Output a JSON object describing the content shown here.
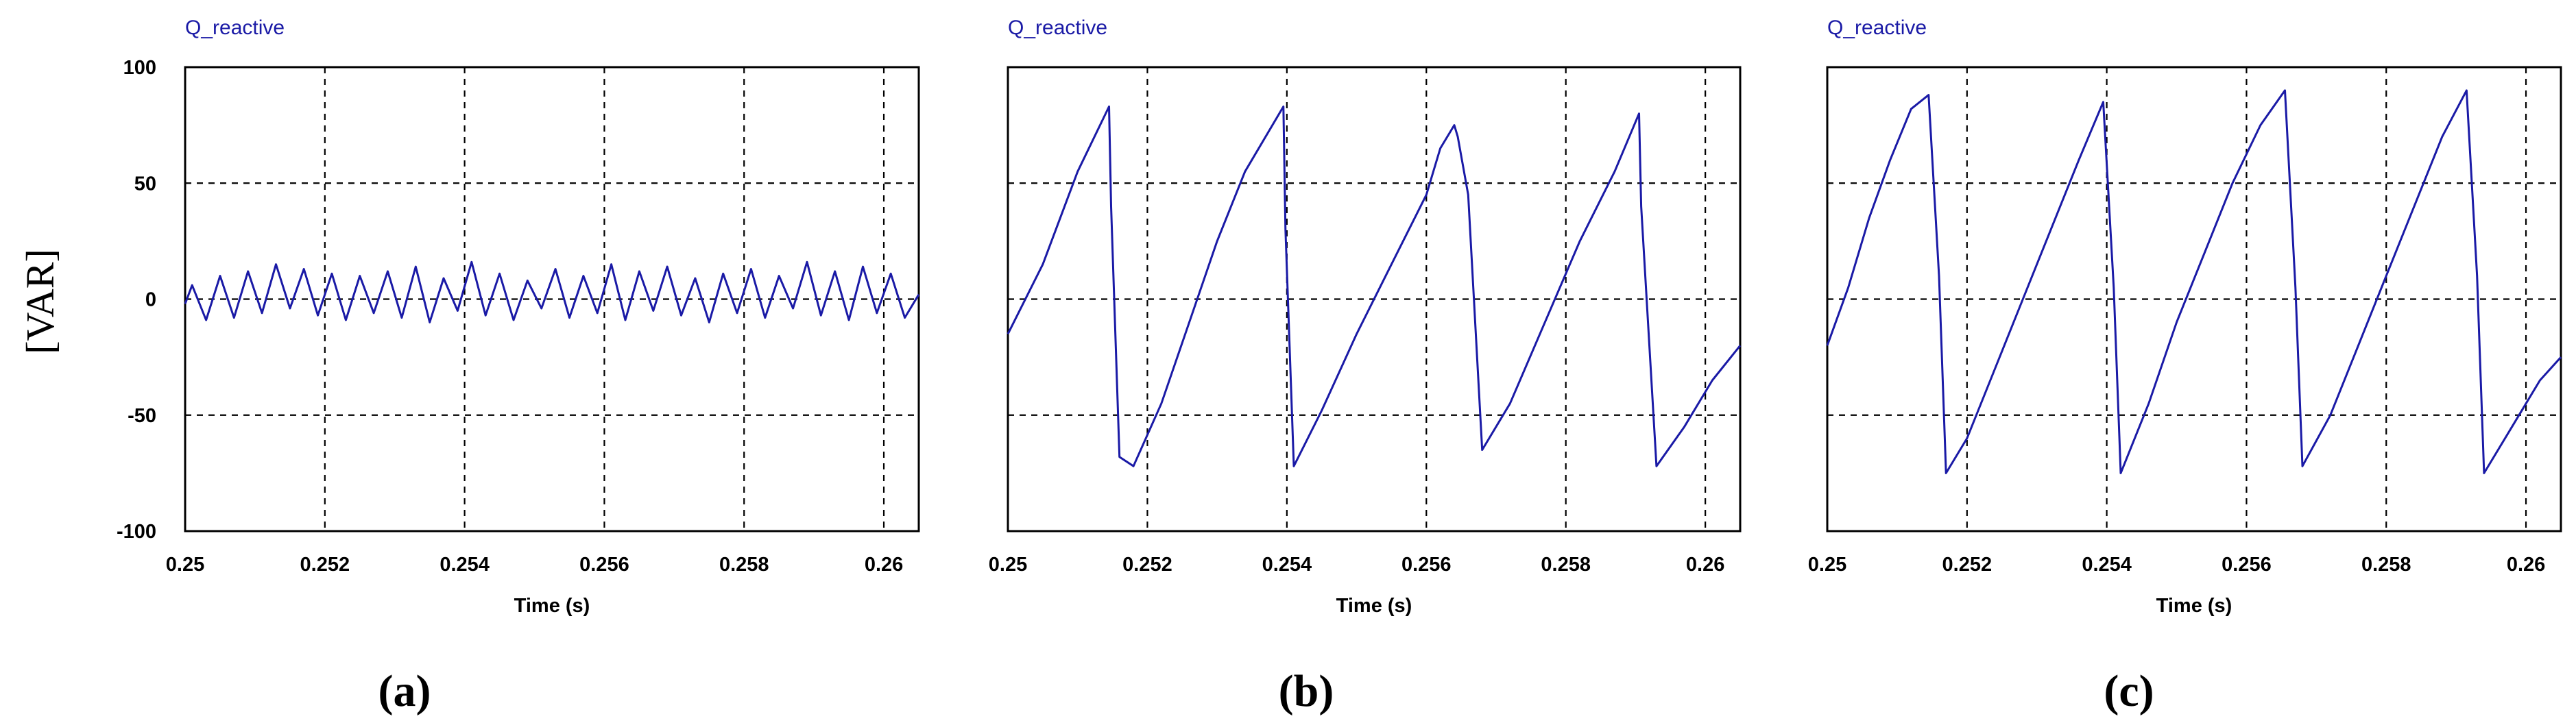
{
  "chart_data": [
    {
      "type": "line",
      "panel": "(a)",
      "title": "Q_reactive",
      "xlabel": "Time (s)",
      "ylabel": "[VAR]",
      "xlim": [
        0.25,
        0.2605
      ],
      "ylim": [
        -100,
        100
      ],
      "xticks": [
        "0.25",
        "0.252",
        "0.254",
        "0.256",
        "0.258",
        "0.26"
      ],
      "yticks": [
        "100",
        "50",
        "0",
        "-50",
        "-100"
      ],
      "grid": true,
      "series": [
        {
          "color": "#1a1aa6",
          "x": [
            0.25,
            0.2501,
            0.2503,
            0.2505,
            0.2507,
            0.2509,
            0.2511,
            0.2513,
            0.2515,
            0.2517,
            0.2519,
            0.2521,
            0.2523,
            0.2525,
            0.2527,
            0.2529,
            0.2531,
            0.2533,
            0.2535,
            0.2537,
            0.2539,
            0.2541,
            0.2543,
            0.2545,
            0.2547,
            0.2549,
            0.2551,
            0.2553,
            0.2555,
            0.2557,
            0.2559,
            0.2561,
            0.2563,
            0.2565,
            0.2567,
            0.2569,
            0.2571,
            0.2573,
            0.2575,
            0.2577,
            0.2579,
            0.2581,
            0.2583,
            0.2585,
            0.2587,
            0.2589,
            0.2591,
            0.2593,
            0.2595,
            0.2597,
            0.2599,
            0.2601,
            0.2603,
            0.2605
          ],
          "y": [
            -2,
            6,
            -9,
            10,
            -8,
            12,
            -6,
            15,
            -4,
            13,
            -7,
            11,
            -9,
            10,
            -6,
            12,
            -8,
            14,
            -10,
            9,
            -5,
            16,
            -7,
            11,
            -9,
            8,
            -4,
            13,
            -8,
            10,
            -6,
            15,
            -9,
            12,
            -5,
            14,
            -7,
            9,
            -10,
            11,
            -6,
            13,
            -8,
            10,
            -4,
            16,
            -7,
            12,
            -9,
            14,
            -6,
            11,
            -8,
            2
          ]
        }
      ],
      "caption": "(a)"
    },
    {
      "type": "line",
      "panel": "(b)",
      "title": "Q_reactive",
      "xlabel": "Time (s)",
      "xlim": [
        0.25,
        0.2605
      ],
      "ylim": [
        -100,
        100
      ],
      "xticks": [
        "0.25",
        "0.252",
        "0.254",
        "0.256",
        "0.258",
        "0.26"
      ],
      "grid": true,
      "series": [
        {
          "color": "#1a1aa6",
          "x": [
            0.25,
            0.2505,
            0.251,
            0.25145,
            0.25148,
            0.2516,
            0.2518,
            0.2522,
            0.2526,
            0.253,
            0.2534,
            0.25395,
            0.25398,
            0.2541,
            0.2545,
            0.255,
            0.2555,
            0.256,
            0.2562,
            0.2564,
            0.25645,
            0.2566,
            0.2568,
            0.2572,
            0.2577,
            0.2582,
            0.2587,
            0.25905,
            0.25908,
            0.2593,
            0.2597,
            0.2601,
            0.2605
          ],
          "y": [
            -15,
            15,
            55,
            83,
            40,
            -68,
            -72,
            -45,
            -10,
            25,
            55,
            83,
            30,
            -72,
            -48,
            -15,
            15,
            45,
            65,
            75,
            70,
            45,
            -65,
            -45,
            -10,
            25,
            55,
            80,
            40,
            -72,
            -55,
            -35,
            -20
          ]
        }
      ],
      "caption": "(b)"
    },
    {
      "type": "line",
      "panel": "(c)",
      "title": "Q_reactive",
      "xlabel": "Time (s)",
      "xlim": [
        0.25,
        0.2605
      ],
      "ylim": [
        -100,
        100
      ],
      "xticks": [
        "0.25",
        "0.252",
        "0.254",
        "0.256",
        "0.258",
        "0.26"
      ],
      "grid": true,
      "series": [
        {
          "color": "#1a1aa6",
          "x": [
            0.25,
            0.2503,
            0.2506,
            0.2509,
            0.2512,
            0.25145,
            0.2516,
            0.2517,
            0.252,
            0.2524,
            0.2528,
            0.2532,
            0.2536,
            0.25395,
            0.2541,
            0.2542,
            0.2546,
            0.255,
            0.2554,
            0.2558,
            0.2562,
            0.25655,
            0.2567,
            0.2568,
            0.2572,
            0.2576,
            0.258,
            0.2584,
            0.2588,
            0.25915,
            0.2593,
            0.2594,
            0.2598,
            0.2602,
            0.2605
          ],
          "y": [
            -20,
            5,
            35,
            60,
            82,
            88,
            10,
            -75,
            -60,
            -30,
            0,
            30,
            60,
            85,
            5,
            -75,
            -45,
            -10,
            20,
            50,
            75,
            90,
            5,
            -72,
            -50,
            -20,
            10,
            40,
            70,
            90,
            10,
            -75,
            -55,
            -35,
            -25
          ]
        }
      ],
      "caption": "(c)"
    }
  ]
}
